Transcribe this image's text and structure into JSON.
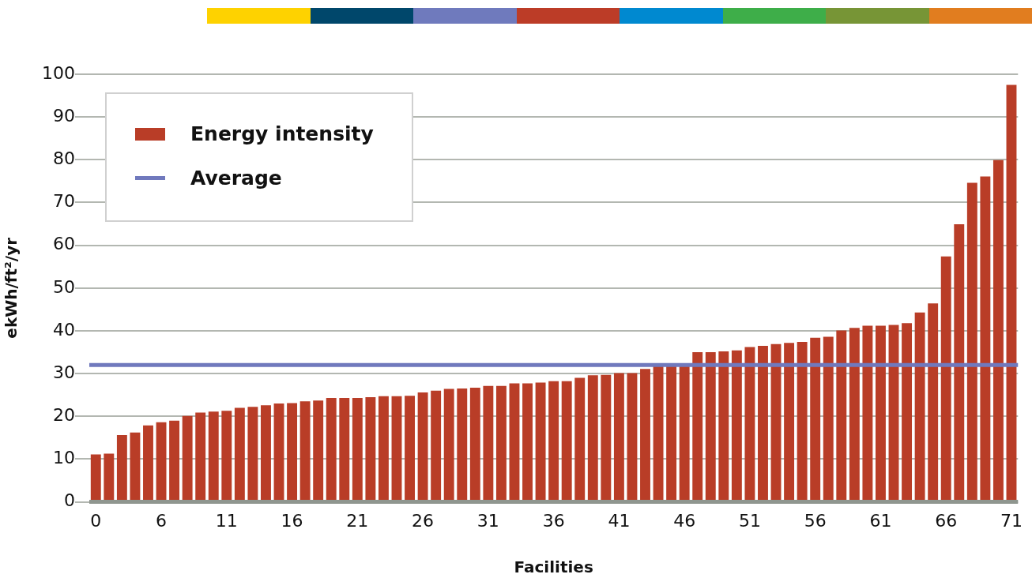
{
  "chart_data": {
    "type": "bar",
    "xlabel": "Facilities",
    "ylabel": "ekWh/ft²/yr",
    "categories": [
      "0",
      null,
      null,
      null,
      null,
      "6",
      null,
      null,
      null,
      null,
      "11",
      null,
      null,
      null,
      null,
      "16",
      null,
      null,
      null,
      null,
      "21",
      null,
      null,
      null,
      null,
      "26",
      null,
      null,
      null,
      null,
      "31",
      null,
      null,
      null,
      null,
      "36",
      null,
      null,
      null,
      null,
      "41",
      null,
      null,
      null,
      null,
      "46",
      null,
      null,
      null,
      null,
      "51",
      null,
      null,
      null,
      null,
      "56",
      null,
      null,
      null,
      null,
      "61",
      null,
      null,
      null,
      null,
      "66",
      null,
      null,
      null,
      null,
      "71"
    ],
    "series": [
      {
        "name": "Energy intensity",
        "color": "#b93d27",
        "values": [
          11.1,
          11.3,
          15.6,
          16.2,
          17.9,
          18.6,
          19.0,
          20.1,
          20.9,
          21.1,
          21.3,
          22.0,
          22.2,
          22.6,
          23.0,
          23.1,
          23.5,
          23.7,
          24.3,
          24.3,
          24.3,
          24.5,
          24.7,
          24.7,
          24.8,
          25.6,
          26.0,
          26.4,
          26.5,
          26.7,
          27.1,
          27.1,
          27.7,
          27.7,
          27.9,
          28.2,
          28.2,
          29.0,
          29.6,
          29.7,
          30.1,
          30.1,
          31.1,
          31.8,
          32.0,
          32.0,
          35.0,
          35.0,
          35.2,
          35.4,
          36.2,
          36.5,
          36.9,
          37.2,
          37.4,
          38.4,
          38.6,
          40.1,
          40.7,
          41.2,
          41.2,
          41.4,
          41.8,
          44.3,
          46.4,
          57.4,
          64.9,
          74.6,
          76.1,
          79.9,
          97.5
        ]
      }
    ],
    "ref_lines": [
      {
        "axis": "y",
        "value": 32,
        "label": "Average",
        "color": "#7079bd"
      }
    ],
    "ylim": [
      0,
      100
    ],
    "yticks": [
      0,
      10,
      20,
      30,
      40,
      50,
      60,
      70,
      80,
      90,
      100
    ],
    "grid": "y",
    "legend": "top left"
  }
}
